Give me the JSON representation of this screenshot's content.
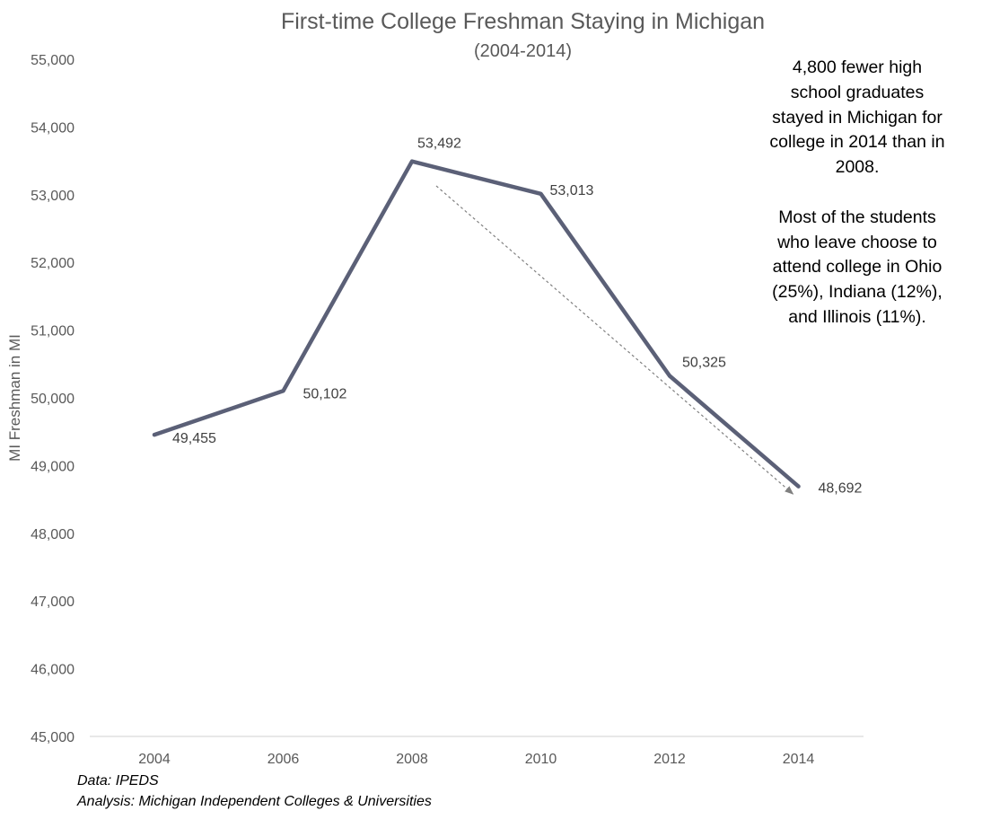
{
  "chart_data": {
    "type": "line",
    "title": "First-time College Freshman Staying in Michigan",
    "subtitle": "(2004-2014)",
    "xlabel": "",
    "ylabel": "MI Freshman in MI",
    "categories": [
      "2004",
      "2006",
      "2008",
      "2010",
      "2012",
      "2014"
    ],
    "series": [
      {
        "values": [
          49455,
          50102,
          53492,
          53013,
          50325,
          48692
        ],
        "data_labels": [
          "49,455",
          "50,102",
          "53,492",
          "53,013",
          "50,325",
          "48,692"
        ]
      }
    ],
    "ylim": [
      45000,
      55000
    ],
    "yticks": [
      45000,
      46000,
      47000,
      48000,
      49000,
      50000,
      51000,
      52000,
      53000,
      54000,
      55000
    ],
    "ytick_labels": [
      "45,000",
      "46,000",
      "47,000",
      "48,000",
      "49,000",
      "50,000",
      "51,000",
      "52,000",
      "53,000",
      "54,000",
      "55,000"
    ],
    "grid": false,
    "legend": "none",
    "trend_arrow": {
      "from": [
        "2008",
        53130
      ],
      "to": [
        "2014",
        48580
      ]
    },
    "annotation": "4,800 fewer high school graduates stayed in Michigan for college in 2014 than in 2008.\n\nMost of the students who leave choose to attend college in Ohio (25%), Indiana (12%), and Illinois (11%).",
    "colors": {
      "line": "#5b6077",
      "axis_text": "#595959",
      "trend_arrow": "#808080",
      "axis_line": "#d9d9d9"
    }
  },
  "footer": {
    "source": "Data: IPEDS",
    "analysis": "Analysis: Michigan Independent Colleges & Universities"
  }
}
